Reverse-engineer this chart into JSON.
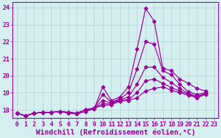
{
  "xlabel": "Windchill (Refroidissement éolien,°C)",
  "ylabel": "",
  "background_color": "#d5eef0",
  "line_color": "#990099",
  "grid_color": "#b0cdd0",
  "xlim": [
    -0.5,
    23.5
  ],
  "ylim": [
    17.5,
    24.3
  ],
  "xticks": [
    0,
    1,
    2,
    3,
    4,
    5,
    6,
    7,
    8,
    9,
    10,
    11,
    12,
    13,
    14,
    15,
    16,
    17,
    18,
    19,
    20,
    21,
    22,
    23
  ],
  "yticks": [
    18,
    19,
    20,
    21,
    22,
    23,
    24
  ],
  "series": [
    [
      17.8,
      17.65,
      17.8,
      17.85,
      17.85,
      17.9,
      17.8,
      17.75,
      17.9,
      18.05,
      19.35,
      18.55,
      18.75,
      19.35,
      21.55,
      23.95,
      23.2,
      20.45,
      20.3,
      19.8,
      19.55,
      19.25,
      19.1
    ],
    [
      17.8,
      17.65,
      17.8,
      17.85,
      17.85,
      17.9,
      17.85,
      17.8,
      18.0,
      18.1,
      18.9,
      18.45,
      18.65,
      19.0,
      20.4,
      22.0,
      21.85,
      20.3,
      20.05,
      19.5,
      19.05,
      18.9,
      19.0
    ],
    [
      17.8,
      17.65,
      17.8,
      17.85,
      17.85,
      17.9,
      17.85,
      17.8,
      18.0,
      18.1,
      18.55,
      18.4,
      18.6,
      18.75,
      19.5,
      20.5,
      20.5,
      19.9,
      19.6,
      19.25,
      18.95,
      18.8,
      18.95
    ],
    [
      17.8,
      17.65,
      17.8,
      17.85,
      17.85,
      17.9,
      17.85,
      17.8,
      18.0,
      18.1,
      18.35,
      18.35,
      18.55,
      18.6,
      19.0,
      19.7,
      19.8,
      19.55,
      19.3,
      19.1,
      18.9,
      18.75,
      18.95
    ],
    [
      17.8,
      17.65,
      17.8,
      17.85,
      17.85,
      17.9,
      17.85,
      17.8,
      18.0,
      18.1,
      18.25,
      18.3,
      18.5,
      18.55,
      18.7,
      19.1,
      19.25,
      19.35,
      19.15,
      19.0,
      18.85,
      18.7,
      18.9
    ]
  ],
  "marker": "D",
  "marker_size": 2.5,
  "line_width": 0.9,
  "font_family": "monospace",
  "tick_fontsize": 6.5,
  "xlabel_fontsize": 7.5
}
